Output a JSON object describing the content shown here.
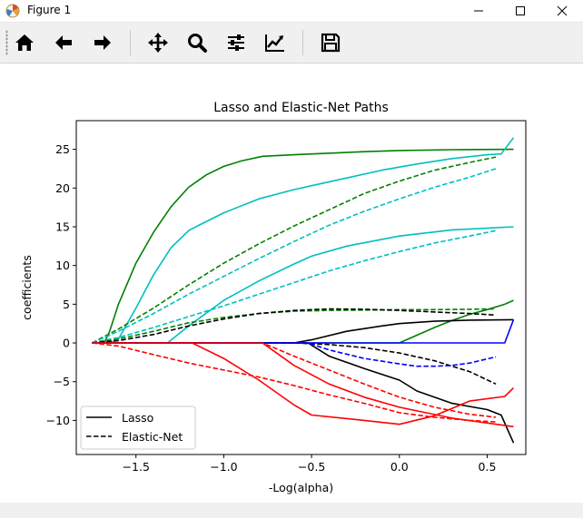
{
  "window": {
    "title": "Figure 1",
    "icon": "matplotlib-icon"
  },
  "toolbar": {
    "buttons": [
      {
        "name": "home-icon"
      },
      {
        "name": "back-arrow-icon"
      },
      {
        "name": "forward-arrow-icon"
      },
      {
        "name": "pan-icon"
      },
      {
        "name": "zoom-icon"
      },
      {
        "name": "configure-subplots-icon"
      },
      {
        "name": "edit-axis-icon"
      },
      {
        "name": "save-icon"
      }
    ]
  },
  "chart_data": {
    "type": "line",
    "title": "Lasso and Elastic-Net Paths",
    "xlabel": "-Log(alpha)",
    "ylabel": "coefficients",
    "xlim": [
      -1.84,
      0.72
    ],
    "ylim": [
      -14.4,
      28.7
    ],
    "xticks": [
      -1.5,
      -1.0,
      -0.5,
      0.0,
      0.5
    ],
    "xtick_labels": [
      "−1.5",
      "−1.0",
      "−0.5",
      "0.0",
      "0.5"
    ],
    "yticks": [
      -10,
      -5,
      0,
      5,
      10,
      15,
      20,
      25
    ],
    "ytick_labels": [
      "−10",
      "−5",
      "0",
      "5",
      "10",
      "15",
      "20",
      "25"
    ],
    "legend": {
      "placement": "lower-left",
      "entries": [
        {
          "label": "Lasso",
          "style": "solid"
        },
        {
          "label": "Elastic-Net",
          "style": "dashed"
        }
      ]
    },
    "colors": {
      "b": "#0000ff",
      "r": "#ff0000",
      "g": "#008000",
      "c": "#00bfbf",
      "k": "#000000"
    },
    "series": [
      {
        "method": "Lasso",
        "color": "g",
        "x": [
          -1.75,
          -1.68,
          -1.65,
          -1.6,
          -1.5,
          -1.4,
          -1.3,
          -1.2,
          -1.1,
          -1.0,
          -0.9,
          -0.78,
          -0.6,
          -0.5,
          -0.2,
          0.0,
          0.3,
          0.65
        ],
        "y": [
          0,
          0,
          1.5,
          5,
          10.3,
          14.3,
          17.6,
          20.1,
          21.7,
          22.8,
          23.5,
          24.1,
          24.3,
          24.4,
          24.7,
          24.85,
          24.95,
          25
        ]
      },
      {
        "method": "Lasso",
        "color": "g",
        "x": [
          -1.75,
          0.0,
          0.1,
          0.2,
          0.3,
          0.4,
          0.5,
          0.6,
          0.65
        ],
        "y": [
          0,
          0,
          1.0,
          2.0,
          2.9,
          3.7,
          4.3,
          5.0,
          5.5
        ]
      },
      {
        "method": "Lasso",
        "color": "c",
        "x": [
          -1.75,
          -1.65,
          -1.6,
          -1.5,
          -1.4,
          -1.3,
          -1.2,
          -1.15,
          -1.0,
          -0.8,
          -0.6,
          -0.5,
          -0.3,
          -0.1,
          0.1,
          0.3,
          0.5,
          0.58,
          0.65
        ],
        "y": [
          0,
          0,
          0.5,
          4.5,
          8.8,
          12.3,
          14.5,
          15.1,
          16.8,
          18.6,
          19.8,
          20.3,
          21.3,
          22.3,
          23.1,
          23.8,
          24.3,
          24.4,
          26.5
        ]
      },
      {
        "method": "Lasso",
        "color": "c",
        "x": [
          -1.75,
          -1.32,
          -1.2,
          -1.0,
          -0.8,
          -0.6,
          -0.5,
          -0.3,
          0.0,
          0.3,
          0.65
        ],
        "y": [
          0,
          0,
          2.2,
          5.5,
          8.0,
          10.2,
          11.2,
          12.5,
          13.8,
          14.6,
          15
        ]
      },
      {
        "method": "Lasso",
        "color": "k",
        "x": [
          -1.75,
          -0.6,
          -0.5,
          -0.3,
          -0.1,
          0.0,
          0.2,
          0.4,
          0.65
        ],
        "y": [
          0,
          0,
          0.4,
          1.5,
          2.2,
          2.5,
          2.8,
          2.95,
          3.0
        ]
      },
      {
        "method": "Lasso",
        "color": "k",
        "x": [
          -1.75,
          -0.52,
          -0.4,
          -0.2,
          0.0,
          0.1,
          0.3,
          0.5,
          0.58,
          0.65
        ],
        "y": [
          0,
          0,
          -1.7,
          -3.3,
          -4.8,
          -6.2,
          -7.8,
          -8.6,
          -9.3,
          -12.9
        ]
      },
      {
        "method": "Lasso",
        "color": "b",
        "x": [
          -1.75,
          0.6,
          0.65
        ],
        "y": [
          0,
          0,
          3.0
        ]
      },
      {
        "method": "Lasso",
        "color": "r",
        "x": [
          -1.75,
          -1.18,
          -1.0,
          -0.8,
          -0.6,
          -0.5,
          -0.2,
          0.0,
          0.2,
          0.4,
          0.6,
          0.65
        ],
        "y": [
          0,
          0,
          -2.0,
          -4.8,
          -8.0,
          -9.3,
          -10.0,
          -10.5,
          -9.4,
          -7.5,
          -6.9,
          -5.8
        ]
      },
      {
        "method": "Lasso",
        "color": "r",
        "x": [
          -1.75,
          -0.78,
          -0.6,
          -0.4,
          -0.2,
          0.0,
          0.3,
          0.65
        ],
        "y": [
          0,
          0,
          -2.9,
          -5.3,
          -7.0,
          -8.3,
          -9.7,
          -10.8
        ]
      },
      {
        "method": "Elastic-Net",
        "color": "g",
        "x": [
          -1.75,
          -1.6,
          -1.4,
          -1.2,
          -1.0,
          -0.8,
          -0.6,
          -0.4,
          -0.2,
          0.0,
          0.2,
          0.4,
          0.55
        ],
        "y": [
          0,
          1.8,
          4.5,
          7.5,
          10.3,
          12.8,
          15.1,
          17.2,
          19.3,
          20.9,
          22.3,
          23.3,
          24.0
        ]
      },
      {
        "method": "Elastic-Net",
        "color": "c",
        "x": [
          -1.75,
          -1.6,
          -1.4,
          -1.2,
          -1.0,
          -0.8,
          -0.6,
          -0.4,
          -0.2,
          0.0,
          0.2,
          0.4,
          0.55
        ],
        "y": [
          0,
          1.5,
          3.8,
          6.3,
          8.6,
          10.9,
          13.1,
          15.2,
          17.0,
          18.6,
          20.1,
          21.4,
          22.5
        ]
      },
      {
        "method": "Elastic-Net",
        "color": "c",
        "x": [
          -1.75,
          -1.6,
          -1.4,
          -1.2,
          -1.0,
          -0.8,
          -0.6,
          -0.4,
          -0.2,
          0.0,
          0.2,
          0.4,
          0.55
        ],
        "y": [
          0,
          0.7,
          2.0,
          3.4,
          4.8,
          6.3,
          7.8,
          9.3,
          10.6,
          11.8,
          12.9,
          13.8,
          14.5
        ]
      },
      {
        "method": "Elastic-Net",
        "color": "g",
        "x": [
          -1.75,
          -1.6,
          -1.4,
          -1.2,
          -1.0,
          -0.8,
          -0.6,
          -0.4,
          -0.2,
          0.0,
          0.2,
          0.4,
          0.55
        ],
        "y": [
          0,
          0.5,
          1.5,
          2.6,
          3.3,
          3.8,
          4.1,
          4.2,
          4.25,
          4.3,
          4.3,
          4.35,
          4.4
        ]
      },
      {
        "method": "Elastic-Net",
        "color": "k",
        "x": [
          -1.75,
          -1.6,
          -1.4,
          -1.2,
          -1.0,
          -0.8,
          -0.6,
          -0.4,
          -0.2,
          0.0,
          0.2,
          0.4,
          0.55
        ],
        "y": [
          0,
          0.3,
          1.1,
          2.2,
          3.1,
          3.8,
          4.2,
          4.4,
          4.35,
          4.2,
          4.0,
          3.8,
          3.6
        ]
      },
      {
        "method": "Elastic-Net",
        "color": "k",
        "x": [
          -1.75,
          -0.6,
          -0.4,
          -0.2,
          0.0,
          0.2,
          0.4,
          0.55
        ],
        "y": [
          0,
          0,
          -0.2,
          -0.6,
          -1.3,
          -2.3,
          -3.7,
          -5.3
        ]
      },
      {
        "method": "Elastic-Net",
        "color": "b",
        "x": [
          -1.75,
          -0.52,
          -0.4,
          -0.2,
          0.0,
          0.1,
          0.2,
          0.3,
          0.4,
          0.55
        ],
        "y": [
          0,
          0,
          -0.9,
          -2.0,
          -2.7,
          -3.0,
          -3.0,
          -2.9,
          -2.6,
          -1.8
        ]
      },
      {
        "method": "Elastic-Net",
        "color": "r",
        "x": [
          -1.75,
          -1.6,
          -1.4,
          -1.2,
          -1.0,
          -0.8,
          -0.6,
          -0.4,
          -0.2,
          0.0,
          0.2,
          0.4,
          0.55
        ],
        "y": [
          0,
          -0.4,
          -1.5,
          -2.6,
          -3.5,
          -4.4,
          -5.5,
          -6.7,
          -7.8,
          -9.0,
          -9.6,
          -10.0,
          -10.2
        ]
      },
      {
        "method": "Elastic-Net",
        "color": "r",
        "x": [
          -1.75,
          -0.78,
          -0.6,
          -0.4,
          -0.2,
          0.0,
          0.2,
          0.4,
          0.55
        ],
        "y": [
          0,
          0,
          -1.7,
          -3.5,
          -5.3,
          -7.0,
          -8.3,
          -9.2,
          -9.6
        ]
      }
    ]
  }
}
